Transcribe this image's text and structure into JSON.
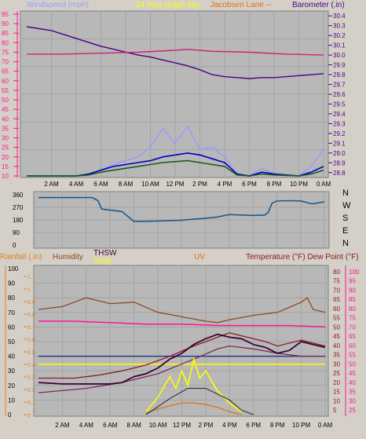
{
  "colors": {
    "bg": "#d4d0c8",
    "plot": "#b8b8b8",
    "grid": "#a4a4a4",
    "wind": "#9a9aff",
    "baro": "#4b0082",
    "inhum": "#d02070",
    "dir": "#1e5a8a",
    "rain": "#e08020",
    "humidity": "#8b4a1e",
    "thsw": "#3a0035",
    "solar": "#ffff00",
    "uv": "#e07010",
    "temp": "#8b1a2a",
    "dew": "#ff1493"
  },
  "chart_data": [
    {
      "type": "line",
      "title": "24 hour graph day",
      "station": "Jacobsen Lane -- ",
      "left_axis_label": "Windspeed (mph)",
      "right_axis_label": "Barometer (.in)",
      "x_ticks": [
        "2 AM",
        "4 AM",
        "6 AM",
        "8 AM",
        "10 AM",
        "12 PM",
        "2 PM",
        "4 PM",
        "6 PM",
        "8 PM",
        "10 PM",
        "0 AM"
      ],
      "wind_ticks": [
        "10",
        "15",
        "20",
        "25",
        "30",
        "35",
        "40",
        "45",
        "50",
        "55",
        "60",
        "65",
        "70",
        "75",
        "80",
        "85",
        "90",
        "95"
      ],
      "baro_ticks": [
        "28.8",
        "28.9",
        "29.0",
        "29.1",
        "29.2",
        "29.3",
        "29.4",
        "29.5",
        "29.6",
        "29.7",
        "29.8",
        "29.9",
        "30.0",
        "30.1",
        "30.2",
        "30.3",
        "30.4"
      ],
      "wind_ylim": [
        10,
        95
      ],
      "baro_ylim": [
        28.75,
        30.45
      ],
      "x_hours": [
        0,
        24
      ],
      "series": [
        {
          "key": "baro",
          "axis": "baro",
          "points": [
            [
              0,
              30.29
            ],
            [
              2,
              30.25
            ],
            [
              3,
              30.21
            ],
            [
              4,
              30.17
            ],
            [
              5,
              30.13
            ],
            [
              6,
              30.09
            ],
            [
              7,
              30.06
            ],
            [
              8,
              30.03
            ],
            [
              9,
              30.0
            ],
            [
              10,
              29.98
            ],
            [
              11,
              29.95
            ],
            [
              12,
              29.92
            ],
            [
              13,
              29.89
            ],
            [
              14,
              29.85
            ],
            [
              15,
              29.8
            ],
            [
              16,
              29.78
            ],
            [
              17,
              29.77
            ],
            [
              18,
              29.76
            ],
            [
              19,
              29.77
            ],
            [
              20,
              29.77
            ],
            [
              21,
              29.78
            ],
            [
              22,
              29.79
            ],
            [
              23,
              29.8
            ],
            [
              24,
              29.81
            ]
          ]
        },
        {
          "key": "inhum",
          "axis": "wind",
          "points": [
            [
              0,
              74
            ],
            [
              3,
              74
            ],
            [
              6,
              74.5
            ],
            [
              9,
              75
            ],
            [
              12,
              76
            ],
            [
              13,
              76.5
            ],
            [
              15,
              75.5
            ],
            [
              18,
              75
            ],
            [
              21,
              74
            ],
            [
              24,
              73.5
            ]
          ]
        },
        {
          "key": "gust",
          "axis": "wind",
          "points": [
            [
              0,
              10
            ],
            [
              4,
              10
            ],
            [
              5,
              11
            ],
            [
              6,
              13
            ],
            [
              7,
              16
            ],
            [
              8,
              18
            ],
            [
              9,
              20
            ],
            [
              10,
              25
            ],
            [
              11,
              35
            ],
            [
              12,
              27
            ],
            [
              13,
              36
            ],
            [
              14,
              24
            ],
            [
              15,
              25
            ],
            [
              16,
              20
            ],
            [
              17,
              11
            ],
            [
              18,
              10
            ],
            [
              19,
              14
            ],
            [
              20,
              11
            ],
            [
              22,
              10
            ],
            [
              23,
              15
            ],
            [
              24,
              24
            ]
          ]
        },
        {
          "key": "avg",
          "axis": "wind",
          "points": [
            [
              0,
              10
            ],
            [
              4,
              10
            ],
            [
              5,
              11
            ],
            [
              6,
              13
            ],
            [
              7,
              15
            ],
            [
              8,
              16
            ],
            [
              9,
              17
            ],
            [
              10,
              18
            ],
            [
              11,
              20
            ],
            [
              12,
              21
            ],
            [
              13,
              22
            ],
            [
              14,
              21
            ],
            [
              15,
              19
            ],
            [
              16,
              17
            ],
            [
              17,
              11
            ],
            [
              18,
              10
            ],
            [
              19,
              12
            ],
            [
              20,
              11
            ],
            [
              22,
              10
            ],
            [
              23,
              12
            ],
            [
              24,
              15
            ]
          ]
        },
        {
          "key": "speed",
          "axis": "wind",
          "points": [
            [
              0,
              10
            ],
            [
              4,
              10
            ],
            [
              5,
              10.5
            ],
            [
              6,
              12
            ],
            [
              7,
              13
            ],
            [
              8,
              14
            ],
            [
              9,
              15
            ],
            [
              10,
              16
            ],
            [
              11,
              17
            ],
            [
              12,
              17.5
            ],
            [
              13,
              18
            ],
            [
              14,
              17
            ],
            [
              15,
              16
            ],
            [
              16,
              15
            ],
            [
              17,
              10.5
            ],
            [
              18,
              10
            ],
            [
              19,
              11
            ],
            [
              20,
              10.5
            ],
            [
              22,
              10
            ],
            [
              23,
              11
            ],
            [
              24,
              13
            ]
          ]
        }
      ]
    },
    {
      "type": "line",
      "y_ticks": [
        "360",
        "270",
        "180",
        "90",
        "0"
      ],
      "compass": [
        "N",
        "W",
        "S",
        "E",
        "N"
      ],
      "ylim": [
        0,
        360
      ],
      "series": [
        {
          "key": "dir",
          "points": [
            [
              0,
              340
            ],
            [
              4.5,
              340
            ],
            [
              5,
              318
            ],
            [
              5.3,
              258
            ],
            [
              6,
              250
            ],
            [
              7,
              240
            ],
            [
              8,
              170
            ],
            [
              9,
              170
            ],
            [
              10,
              172
            ],
            [
              11,
              175
            ],
            [
              12,
              178
            ],
            [
              13,
              185
            ],
            [
              14,
              192
            ],
            [
              15,
              200
            ],
            [
              16,
              218
            ],
            [
              17,
              215
            ],
            [
              18,
              212
            ],
            [
              19,
              215
            ],
            [
              19.3,
              235
            ],
            [
              19.6,
              300
            ],
            [
              20,
              315
            ],
            [
              21,
              318
            ],
            [
              22,
              316
            ],
            [
              23,
              295
            ],
            [
              24,
              310
            ]
          ]
        }
      ]
    },
    {
      "type": "line",
      "labels": {
        "rain": "Rainfall (.in)",
        "humidity": "Humidity",
        "thsw": "THSW",
        "solar": "Solar",
        "uv": "UV",
        "temp": "Temperature (°F) Dew Point (°F)"
      },
      "x_ticks": [
        "2 AM",
        "4 AM",
        "6 AM",
        "8 AM",
        "10 AM",
        "12 PM",
        "2 PM",
        "4 PM",
        "6 PM",
        "8 PM",
        "10 PM",
        "0 AM"
      ],
      "humidity_ticks": [
        "0",
        "10",
        "20",
        "30",
        "40",
        "50",
        "60",
        "70",
        "80",
        "90",
        "100"
      ],
      "rain_ticks": [
        "0",
        "0.1",
        "0.2",
        "0.3",
        "0.4",
        "0.5",
        "0.6",
        "0.7",
        "0.8",
        "0.9",
        "1",
        "1.1"
      ],
      "temp_ticks": [
        "5",
        "10",
        "15",
        "20",
        "25",
        "30",
        "35",
        "40",
        "45",
        "50",
        "55",
        "60",
        "65",
        "70",
        "75",
        "80"
      ],
      "temp2_ticks": [
        "25",
        "30",
        "35",
        "40",
        "45",
        "50",
        "55",
        "60",
        "65",
        "70",
        "75",
        "80",
        "85",
        "90",
        "95",
        "100"
      ],
      "humidity_ylim": [
        0,
        100
      ],
      "temp_ylim": [
        0,
        82
      ],
      "series": [
        {
          "key": "humidity",
          "axis": "humidity",
          "points": [
            [
              0,
              72
            ],
            [
              2,
              74
            ],
            [
              4,
              80
            ],
            [
              6,
              76
            ],
            [
              8,
              77
            ],
            [
              10,
              70
            ],
            [
              12,
              67
            ],
            [
              14,
              64
            ],
            [
              15,
              63
            ],
            [
              16,
              65
            ],
            [
              18,
              68
            ],
            [
              20,
              70
            ],
            [
              22,
              77
            ],
            [
              22.5,
              80
            ],
            [
              23,
              72
            ],
            [
              24,
              70
            ]
          ]
        },
        {
          "key": "dew",
          "axis": "humidity",
          "points": [
            [
              0,
              64
            ],
            [
              3,
              64
            ],
            [
              6,
              63
            ],
            [
              9,
              62
            ],
            [
              12,
              62
            ],
            [
              15,
              61
            ],
            [
              18,
              61
            ],
            [
              21,
              61
            ],
            [
              24,
              60
            ]
          ]
        },
        {
          "key": "solarline",
          "axis": "humidity",
          "points": [
            [
              0,
              34.5
            ],
            [
              24,
              34.5
            ]
          ]
        },
        {
          "key": "bluehline",
          "axis": "humidity",
          "points": [
            [
              0,
              40
            ],
            [
              24,
              40
            ]
          ]
        },
        {
          "key": "temp",
          "axis": "humidity",
          "points": [
            [
              0,
              25
            ],
            [
              3,
              25
            ],
            [
              5,
              27
            ],
            [
              7,
              30
            ],
            [
              9,
              34
            ],
            [
              11,
              40
            ],
            [
              13,
              47
            ],
            [
              15,
              53
            ],
            [
              16,
              56
            ],
            [
              17,
              54
            ],
            [
              18,
              52
            ],
            [
              19,
              50
            ],
            [
              20,
              47
            ],
            [
              21,
              49
            ],
            [
              22,
              51
            ],
            [
              23,
              49
            ],
            [
              24,
              47
            ]
          ]
        },
        {
          "key": "tempcool",
          "axis": "humidity",
          "points": [
            [
              0,
              15
            ],
            [
              4,
              18
            ],
            [
              7,
              22
            ],
            [
              10,
              28
            ],
            [
              13,
              38
            ],
            [
              15,
              45
            ],
            [
              16,
              47
            ],
            [
              18,
              45
            ],
            [
              20,
              42
            ],
            [
              22,
              40
            ],
            [
              24,
              40
            ]
          ]
        },
        {
          "key": "thsw",
          "axis": "humidity",
          "points": [
            [
              0,
              22
            ],
            [
              2,
              21
            ],
            [
              4,
              21
            ],
            [
              6,
              21
            ],
            [
              7,
              22
            ],
            [
              8,
              26
            ],
            [
              9,
              28
            ],
            [
              10,
              32
            ],
            [
              11,
              38
            ],
            [
              12,
              42
            ],
            [
              13,
              48
            ],
            [
              14,
              52
            ],
            [
              15,
              55
            ],
            [
              16,
              53
            ],
            [
              17,
              52
            ],
            [
              18,
              48
            ],
            [
              19,
              46
            ],
            [
              20,
              42
            ],
            [
              21,
              44
            ],
            [
              22,
              50
            ],
            [
              23,
              48
            ],
            [
              24,
              46
            ]
          ]
        },
        {
          "key": "solar",
          "axis": "humidity",
          "points": [
            [
              9,
              2
            ],
            [
              10,
              12
            ],
            [
              11,
              26
            ],
            [
              11.5,
              18
            ],
            [
              12,
              30
            ],
            [
              12.5,
              20
            ],
            [
              13,
              38
            ],
            [
              13.5,
              25
            ],
            [
              14,
              30
            ],
            [
              15,
              16
            ],
            [
              16,
              8
            ],
            [
              17,
              2
            ]
          ]
        },
        {
          "key": "uv",
          "axis": "humidity",
          "points": [
            [
              9,
              1
            ],
            [
              10,
              4
            ],
            [
              11,
              6
            ],
            [
              12,
              8
            ],
            [
              13,
              8
            ],
            [
              14,
              7
            ],
            [
              15,
              5
            ],
            [
              16,
              2
            ],
            [
              17,
              0
            ]
          ]
        },
        {
          "key": "uvfill",
          "axis": "humidity",
          "points": [
            [
              9,
              0
            ],
            [
              11,
              11
            ],
            [
              12.5,
              18
            ],
            [
              14,
              18
            ],
            [
              16,
              10
            ],
            [
              17,
              3
            ],
            [
              18,
              0
            ]
          ]
        }
      ]
    }
  ]
}
